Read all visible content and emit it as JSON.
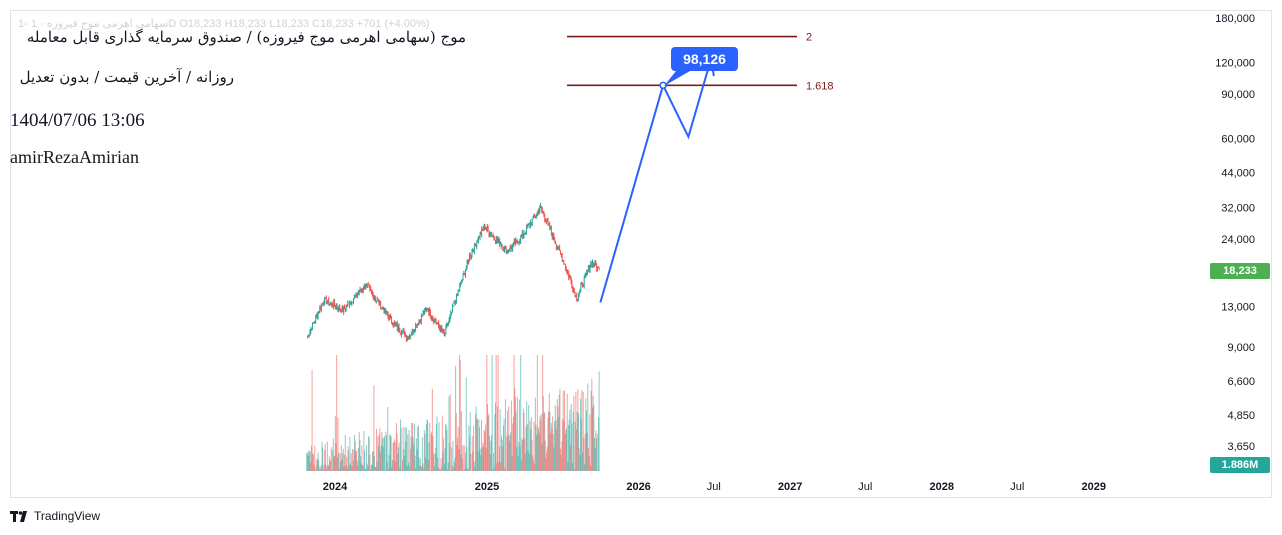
{
  "header": {
    "ohlc_text": "1- سهامی اهرمی موج فیروزه · 1D  O18,233  H18,233  L18,233  C18,233  +701 (+4.00%)",
    "title": "موج (سهامی اهرمی موج فیروزه) / صندوق سرمایه گذاری قابل معامله",
    "subtitle": "روزانه / آخرین قیمت / بدون تعدیل",
    "datetime": "1404/07/06 13:06",
    "author": "amirRezaAmirian"
  },
  "branding": {
    "logo_icon": "tradingview-logo-icon",
    "name": "TradingView"
  },
  "badges": {
    "last_price": "18,233",
    "last_volume": "1.886M"
  },
  "callout": {
    "label": "98,126",
    "value": 98126
  },
  "colors": {
    "up": "#26a69a",
    "down": "#ef5350",
    "fib_line": "#7b1c1c",
    "projection": "#2962ff",
    "price_badge": "#4caf50",
    "volume_badge": "#26a69a",
    "axis_text": "#131722"
  },
  "chart_data": {
    "type": "line",
    "scale": "log",
    "ylim": [
      3300,
      190000
    ],
    "y_ticks": [
      {
        "value": 180000,
        "label": "180,000"
      },
      {
        "value": 120000,
        "label": "120,000"
      },
      {
        "value": 90000,
        "label": "90,000"
      },
      {
        "value": 60000,
        "label": "60,000"
      },
      {
        "value": 44000,
        "label": "44,000"
      },
      {
        "value": 32000,
        "label": "32,000"
      },
      {
        "value": 24000,
        "label": "24,000"
      },
      {
        "value": 13000,
        "label": "13,000"
      },
      {
        "value": 9000,
        "label": "9,000"
      },
      {
        "value": 6600,
        "label": "6,600"
      },
      {
        "value": 4850,
        "label": "4,850"
      },
      {
        "value": 3650,
        "label": "3,650"
      }
    ],
    "x_ticks": [
      {
        "date": "2024-01-01",
        "label": "2024"
      },
      {
        "date": "2025-01-01",
        "label": "2025"
      },
      {
        "date": "2026-01-01",
        "label": "2026"
      },
      {
        "date": "2026-07-01",
        "label": "Jul"
      },
      {
        "date": "2027-01-01",
        "label": "2027"
      },
      {
        "date": "2027-07-01",
        "label": "Jul"
      },
      {
        "date": "2028-01-01",
        "label": "2028"
      },
      {
        "date": "2028-07-01",
        "label": "Jul"
      },
      {
        "date": "2029-01-01",
        "label": "2029"
      }
    ],
    "fib_levels": [
      {
        "label": "2",
        "value": 152000
      },
      {
        "label": "1.618",
        "value": 97500
      }
    ],
    "price_anchors": [
      {
        "date": "2023-10-25",
        "value": 9800
      },
      {
        "date": "2023-12-05",
        "value": 13800
      },
      {
        "date": "2024-01-20",
        "value": 12600
      },
      {
        "date": "2024-03-15",
        "value": 15800
      },
      {
        "date": "2024-05-20",
        "value": 11200
      },
      {
        "date": "2024-06-25",
        "value": 9800
      },
      {
        "date": "2024-08-10",
        "value": 12800
      },
      {
        "date": "2024-09-20",
        "value": 10000
      },
      {
        "date": "2024-11-20",
        "value": 20500
      },
      {
        "date": "2024-12-25",
        "value": 27000
      },
      {
        "date": "2025-02-20",
        "value": 21500
      },
      {
        "date": "2025-03-25",
        "value": 24500
      },
      {
        "date": "2025-05-10",
        "value": 32000
      },
      {
        "date": "2025-07-05",
        "value": 19500
      },
      {
        "date": "2025-08-05",
        "value": 14000
      },
      {
        "date": "2025-09-10",
        "value": 19500
      },
      {
        "date": "2025-09-28",
        "value": 18233
      }
    ],
    "volume": {
      "unit": "M",
      "start_date": "2023-10-25",
      "end_date": "2025-09-28",
      "last": 1.886,
      "peak": 5.2
    },
    "projection": [
      {
        "date": "2025-10-01",
        "value": 13500
      },
      {
        "date": "2026-03-01",
        "value": 97500
      },
      {
        "date": "2026-05-01",
        "value": 61000
      },
      {
        "date": "2026-06-25",
        "value": 125000
      },
      {
        "date": "2026-07-01",
        "value": 106000
      }
    ]
  }
}
